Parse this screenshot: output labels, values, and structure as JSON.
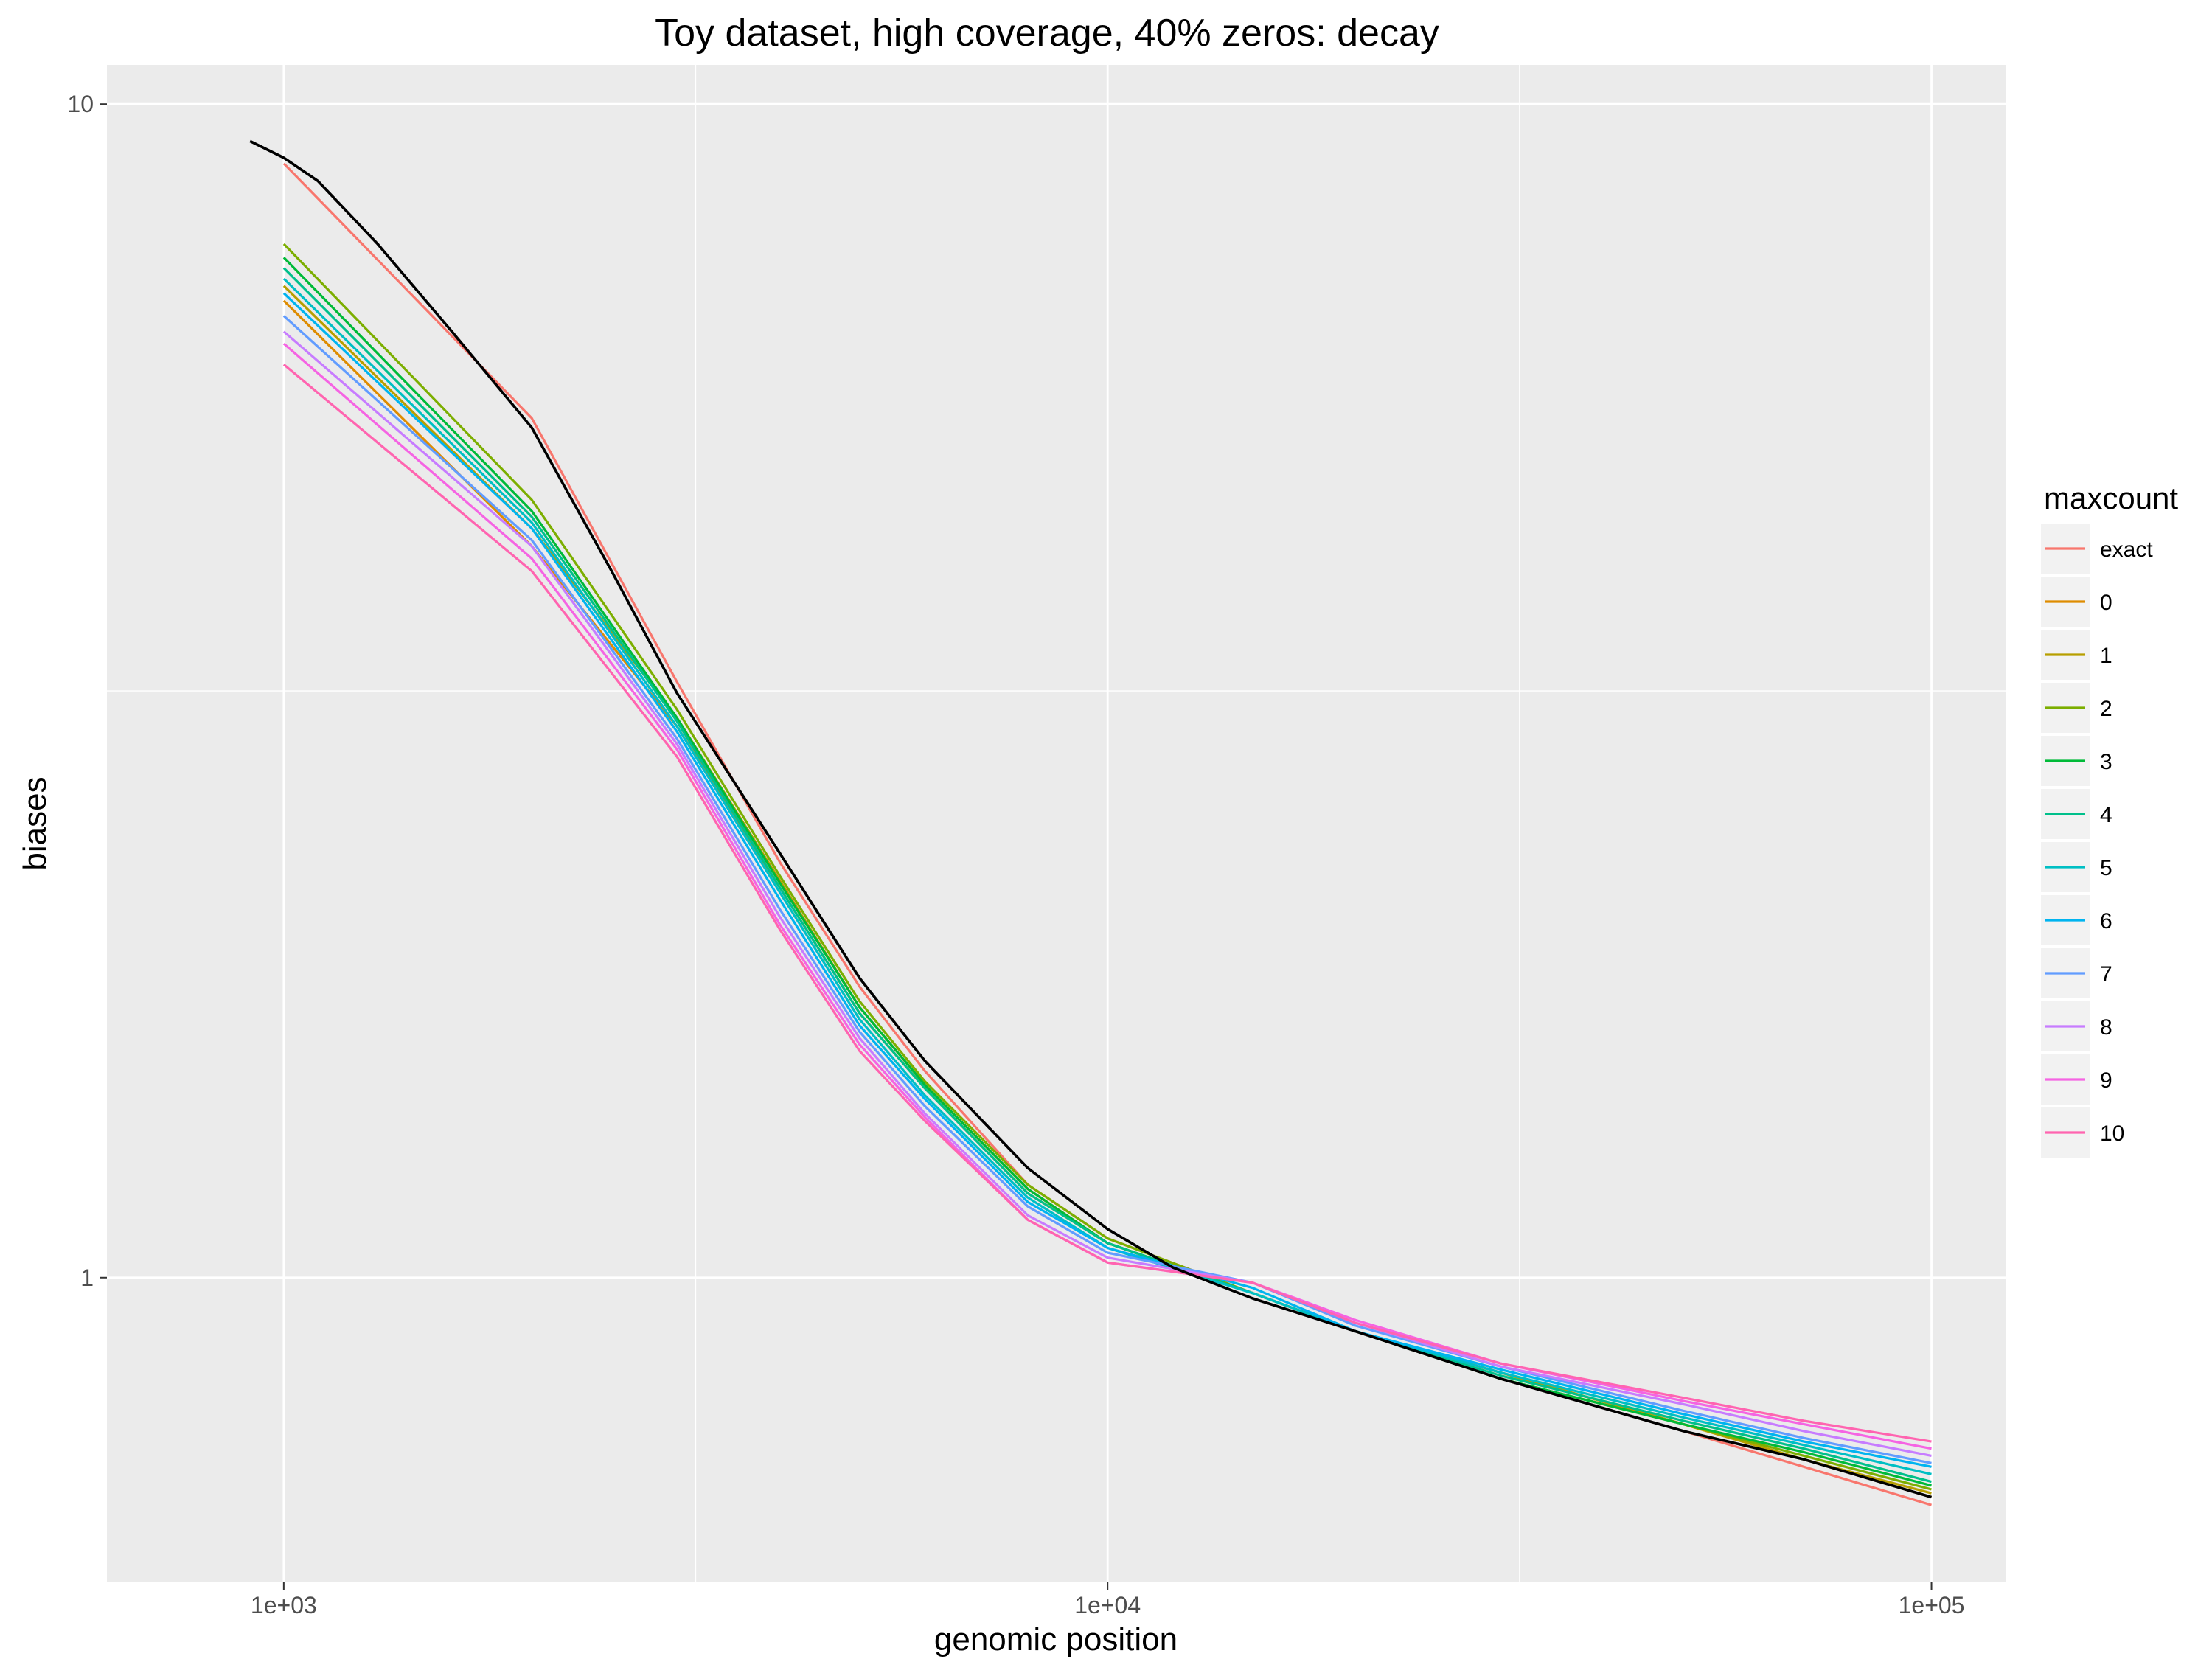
{
  "chart_data": {
    "type": "line",
    "title": "Toy dataset, high coverage, 40% zeros: decay",
    "xlabel": "genomic position",
    "ylabel": "biases",
    "x_scale": "log10",
    "y_scale": "log10",
    "xlim": [
      610,
      123000
    ],
    "ylim": [
      0.55,
      10.8
    ],
    "x_ticks": [
      {
        "value": 1000,
        "label": "1e+03"
      },
      {
        "value": 10000,
        "label": "1e+04"
      },
      {
        "value": 100000,
        "label": "1e+05"
      }
    ],
    "y_ticks": [
      {
        "value": 1,
        "label": "1"
      },
      {
        "value": 10,
        "label": "10"
      }
    ],
    "x_minor_gridlines": [
      3162,
      31623
    ],
    "y_minor_gridlines": [
      3.162
    ],
    "grid": true,
    "legend": {
      "title": "maxcount",
      "placement": "right"
    },
    "x": [
      1000,
      2000,
      3000,
      4000,
      5000,
      6000,
      8000,
      10000,
      15000,
      20000,
      30000,
      50000,
      70000,
      100000
    ],
    "series": [
      {
        "name": "exact",
        "color": "#F8766D",
        "values": [
          8.9,
          5.4,
          3.22,
          2.26,
          1.77,
          1.5,
          1.2,
          1.08,
          0.97,
          0.9,
          0.82,
          0.74,
          0.69,
          0.64
        ]
      },
      {
        "name": "0",
        "color": "#DE8C00",
        "values": [
          6.8,
          4.2,
          2.95,
          2.15,
          1.68,
          1.45,
          1.18,
          1.07,
          0.97,
          0.9,
          0.83,
          0.75,
          0.7,
          0.65
        ]
      },
      {
        "name": "1",
        "color": "#B79F00",
        "values": [
          7.0,
          4.35,
          3.0,
          2.18,
          1.7,
          1.46,
          1.19,
          1.07,
          0.97,
          0.9,
          0.83,
          0.75,
          0.7,
          0.655
        ]
      },
      {
        "name": "2",
        "color": "#7CAE00",
        "values": [
          7.6,
          4.6,
          3.05,
          2.2,
          1.72,
          1.47,
          1.2,
          1.08,
          0.97,
          0.9,
          0.82,
          0.75,
          0.705,
          0.66
        ]
      },
      {
        "name": "3",
        "color": "#00BA38",
        "values": [
          7.4,
          4.5,
          3.0,
          2.17,
          1.7,
          1.46,
          1.19,
          1.07,
          0.97,
          0.9,
          0.82,
          0.75,
          0.71,
          0.665
        ]
      },
      {
        "name": "4",
        "color": "#00C08B",
        "values": [
          7.25,
          4.45,
          2.98,
          2.15,
          1.68,
          1.45,
          1.18,
          1.07,
          0.97,
          0.9,
          0.825,
          0.755,
          0.715,
          0.67
        ]
      },
      {
        "name": "5",
        "color": "#00BFC4",
        "values": [
          7.1,
          4.4,
          2.95,
          2.13,
          1.66,
          1.43,
          1.17,
          1.06,
          0.97,
          0.9,
          0.83,
          0.76,
          0.72,
          0.68
        ]
      },
      {
        "name": "6",
        "color": "#00B4F0",
        "values": [
          6.9,
          4.35,
          2.92,
          2.1,
          1.64,
          1.42,
          1.16,
          1.06,
          0.98,
          0.9,
          0.835,
          0.765,
          0.725,
          0.69
        ]
      },
      {
        "name": "7",
        "color": "#619CFF",
        "values": [
          6.6,
          4.25,
          2.88,
          2.06,
          1.62,
          1.4,
          1.15,
          1.05,
          0.99,
          0.91,
          0.84,
          0.77,
          0.73,
          0.695
        ]
      },
      {
        "name": "8",
        "color": "#C77CFF",
        "values": [
          6.4,
          4.2,
          2.85,
          2.03,
          1.6,
          1.38,
          1.13,
          1.04,
          0.99,
          0.915,
          0.84,
          0.78,
          0.74,
          0.705
        ]
      },
      {
        "name": "9",
        "color": "#F564E3",
        "values": [
          6.25,
          4.1,
          2.82,
          2.0,
          1.58,
          1.37,
          1.12,
          1.03,
          0.99,
          0.92,
          0.845,
          0.785,
          0.75,
          0.715
        ]
      },
      {
        "name": "10",
        "color": "#FF64B0",
        "values": [
          6.0,
          4.0,
          2.78,
          1.98,
          1.56,
          1.36,
          1.12,
          1.03,
          0.99,
          0.915,
          0.845,
          0.79,
          0.755,
          0.725
        ]
      }
    ],
    "reference_curve": {
      "color": "#000000",
      "x": [
        910,
        1000,
        1100,
        1300,
        1600,
        2000,
        2500,
        3000,
        4000,
        5000,
        6000,
        8000,
        10000,
        12000,
        15000,
        20000,
        30000,
        50000,
        70000,
        100000
      ],
      "values": [
        9.3,
        9.0,
        8.6,
        7.6,
        6.4,
        5.3,
        4.0,
        3.15,
        2.3,
        1.8,
        1.53,
        1.24,
        1.1,
        1.02,
        0.96,
        0.9,
        0.82,
        0.74,
        0.7,
        0.65
      ]
    }
  }
}
